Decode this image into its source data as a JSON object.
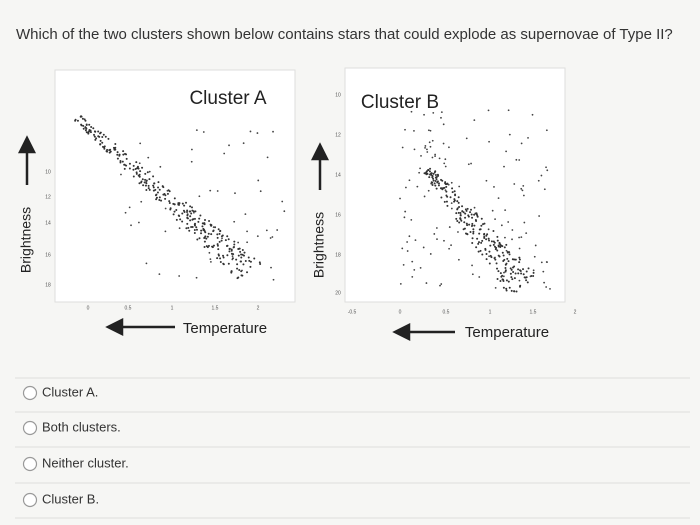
{
  "question": "Which of the two clusters shown below contains stars that could explode as supernovae of Type II?",
  "figures": [
    {
      "title": "Cluster A",
      "y_label": "Brightness",
      "x_label": "Temperature",
      "y_tick_labels": [
        "10",
        "12",
        "14",
        "16",
        "18"
      ],
      "x_tick_labels": [
        "0",
        "0.5",
        "1",
        "1.5",
        "2"
      ]
    },
    {
      "title": "Cluster B",
      "y_label": "Brightness",
      "x_label": "Temperature",
      "y_tick_labels": [
        "10",
        "12",
        "14",
        "16",
        "18",
        "20"
      ],
      "x_tick_labels": [
        "-0.5",
        "0",
        "0.5",
        "1",
        "1.5",
        "2"
      ]
    }
  ],
  "options": [
    "Cluster A.",
    "Both clusters.",
    "Neither cluster.",
    "Cluster B."
  ]
}
